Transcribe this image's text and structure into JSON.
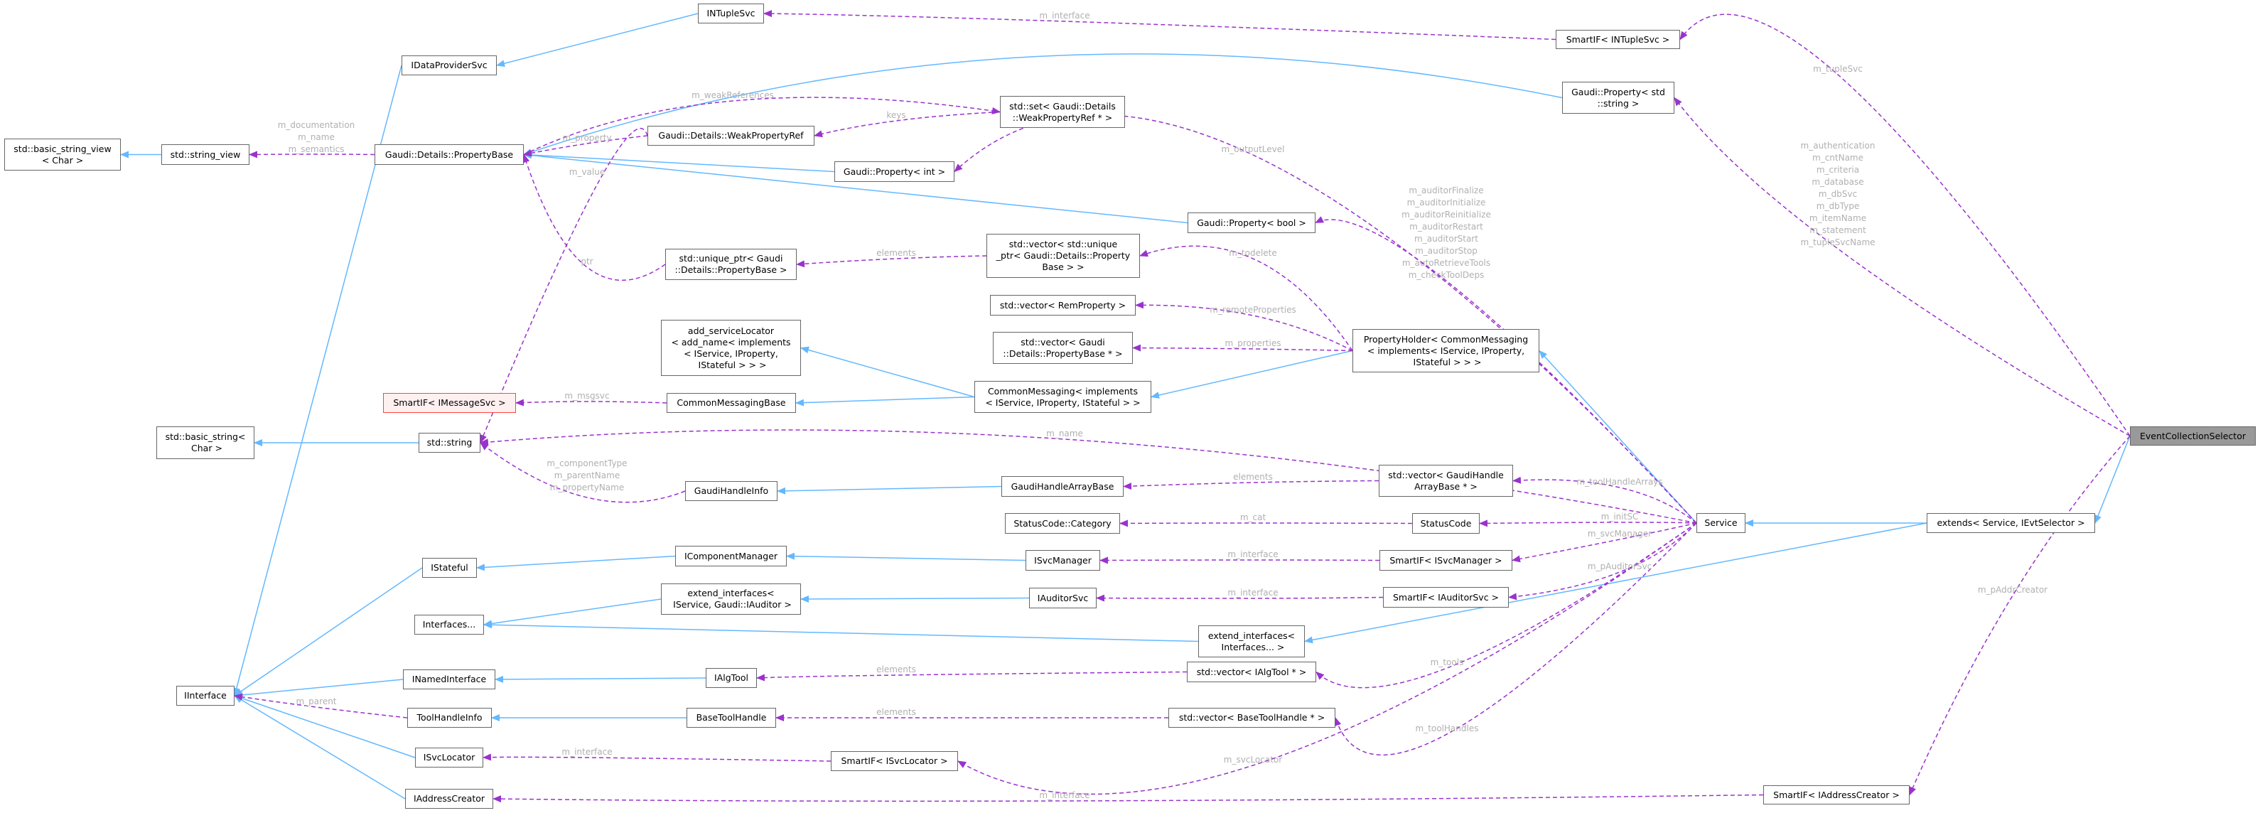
{
  "colors": {
    "inheritance": "#63b8ff",
    "usage": "#9a32cd",
    "edge_label": "#b0b0b0",
    "current_node_fill": "#999999",
    "warning_node_border": "#ff4444",
    "warning_node_fill": "#fff0f0"
  },
  "current_node": 22,
  "warning_nodes": [
    18
  ],
  "nodes": [
    {
      "lines": [
        "INTupleSvc"
      ]
    },
    {
      "lines": [
        "SmartIF< INTupleSvc >"
      ]
    },
    {
      "lines": [
        "IDataProviderSvc"
      ]
    },
    {
      "lines": [
        "Gaudi::Property< std",
        "::string >"
      ]
    },
    {
      "lines": [
        "std::basic_string_view",
        "< Char >"
      ]
    },
    {
      "lines": [
        "std::string_view"
      ]
    },
    {
      "lines": [
        "Gaudi::Details::PropertyBase"
      ]
    },
    {
      "lines": [
        "Gaudi::Details::WeakPropertyRef"
      ]
    },
    {
      "lines": [
        "std::set< Gaudi::Details",
        "::WeakPropertyRef * >"
      ]
    },
    {
      "lines": [
        "Gaudi::Property< int >"
      ]
    },
    {
      "lines": [
        "Gaudi::Property< bool >"
      ]
    },
    {
      "lines": [
        "std::unique_ptr< Gaudi",
        "::Details::PropertyBase >"
      ]
    },
    {
      "lines": [
        "std::vector< std::unique",
        "_ptr< Gaudi::Details::Property",
        "Base > >"
      ]
    },
    {
      "lines": [
        "std::vector< RemProperty >"
      ]
    },
    {
      "lines": [
        "std::vector< Gaudi",
        "::Details::PropertyBase * >"
      ]
    },
    {
      "lines": [
        "PropertyHolder< CommonMessaging",
        "< implements< IService, IProperty,",
        " IStateful > > >"
      ]
    },
    {
      "lines": [
        "add_serviceLocator",
        "< add_name< implements",
        "< IService, IProperty,",
        " IStateful > > >"
      ]
    },
    {
      "lines": [
        "CommonMessagingBase"
      ]
    },
    {
      "lines": [
        "SmartIF< IMessageSvc >"
      ]
    },
    {
      "lines": [
        "CommonMessaging< implements",
        "< IService, IProperty, IStateful > >"
      ]
    },
    {
      "lines": [
        "std::basic_string<",
        " Char >"
      ]
    },
    {
      "lines": [
        "std::string"
      ]
    },
    {
      "lines": [
        "EventCollectionSelector"
      ]
    },
    {
      "lines": [
        "GaudiHandleArrayBase"
      ]
    },
    {
      "lines": [
        "std::vector< GaudiHandle",
        "ArrayBase * >"
      ]
    },
    {
      "lines": [
        "GaudiHandleInfo"
      ]
    },
    {
      "lines": [
        "StatusCode::Category"
      ]
    },
    {
      "lines": [
        "StatusCode"
      ]
    },
    {
      "lines": [
        "Service"
      ]
    },
    {
      "lines": [
        "extends< Service, IEvtSelector >"
      ]
    },
    {
      "lines": [
        "IComponentManager"
      ]
    },
    {
      "lines": [
        "ISvcManager"
      ]
    },
    {
      "lines": [
        "SmartIF< ISvcManager >"
      ]
    },
    {
      "lines": [
        "IStateful"
      ]
    },
    {
      "lines": [
        "extend_interfaces<",
        " IService, Gaudi::IAuditor >"
      ]
    },
    {
      "lines": [
        "IAuditorSvc"
      ]
    },
    {
      "lines": [
        "SmartIF< IAuditorSvc >"
      ]
    },
    {
      "lines": [
        "Interfaces..."
      ]
    },
    {
      "lines": [
        "extend_interfaces<",
        " Interfaces... >"
      ]
    },
    {
      "lines": [
        "std::vector< IAlgTool * >"
      ]
    },
    {
      "lines": [
        "IAlgTool"
      ]
    },
    {
      "lines": [
        "INamedInterface"
      ]
    },
    {
      "lines": [
        "IInterface"
      ]
    },
    {
      "lines": [
        "ToolHandleInfo"
      ]
    },
    {
      "lines": [
        "BaseToolHandle"
      ]
    },
    {
      "lines": [
        "std::vector< BaseToolHandle * >"
      ]
    },
    {
      "lines": [
        "ISvcLocator"
      ]
    },
    {
      "lines": [
        "SmartIF< ISvcLocator >"
      ]
    },
    {
      "lines": [
        "IAddressCreator"
      ]
    },
    {
      "lines": [
        "SmartIF< IAddressCreator >"
      ]
    }
  ],
  "inheritance": [
    [
      0,
      2
    ],
    [
      2,
      42
    ],
    [
      3,
      6
    ],
    [
      9,
      6
    ],
    [
      10,
      6
    ],
    [
      5,
      4
    ],
    [
      21,
      20
    ],
    [
      19,
      16
    ],
    [
      19,
      17
    ],
    [
      15,
      19
    ],
    [
      28,
      15
    ],
    [
      23,
      25
    ],
    [
      33,
      42
    ],
    [
      30,
      33
    ],
    [
      31,
      30
    ],
    [
      34,
      37
    ],
    [
      35,
      34
    ],
    [
      38,
      37
    ],
    [
      29,
      38
    ],
    [
      41,
      42
    ],
    [
      40,
      41
    ],
    [
      44,
      43
    ],
    [
      46,
      42
    ],
    [
      48,
      42
    ],
    [
      29,
      28
    ],
    [
      22,
      29
    ]
  ],
  "usage": [
    {
      "from": 1,
      "to": 0,
      "label": [
        "m_interface"
      ]
    },
    {
      "from": 22,
      "to": 1,
      "label": [
        "m_tupleSvc"
      ]
    },
    {
      "from": 22,
      "to": 3,
      "label": [
        "m_authentication",
        "m_cntName",
        "m_criteria",
        "m_database",
        "m_dbSvc",
        "m_dbType",
        "m_itemName",
        "m_statement",
        "m_tupleSvcName"
      ]
    },
    {
      "from": 22,
      "to": 49,
      "label": [
        "m_pAddrCreator"
      ]
    },
    {
      "from": 49,
      "to": 48,
      "label": [
        "m_interface"
      ]
    },
    {
      "from": 6,
      "to": 5,
      "label": [
        "m_documentation",
        "m_name",
        "m_semantics"
      ]
    },
    {
      "from": 6,
      "to": 8,
      "label": [
        "m_weakReferences"
      ]
    },
    {
      "from": 8,
      "to": 7,
      "label": [
        "keys"
      ]
    },
    {
      "from": 7,
      "to": 6,
      "label": [
        "m_property"
      ]
    },
    {
      "from": 7,
      "to": 21,
      "label": [
        "m_value"
      ]
    },
    {
      "from": 11,
      "to": 6,
      "label": [
        "ptr"
      ]
    },
    {
      "from": 12,
      "to": 11,
      "label": [
        "elements"
      ]
    },
    {
      "from": 15,
      "to": 12,
      "label": [
        "m_todelete"
      ]
    },
    {
      "from": 15,
      "to": 13,
      "label": [
        "m_remoteProperties"
      ]
    },
    {
      "from": 15,
      "to": 14,
      "label": [
        "m_properties"
      ]
    },
    {
      "from": 17,
      "to": 18,
      "label": [
        "m_msgsvc"
      ]
    },
    {
      "from": 28,
      "to": 21,
      "label": [
        "m_name"
      ]
    },
    {
      "from": 28,
      "to": 9,
      "label": [
        "m_outputLevel"
      ]
    },
    {
      "from": 28,
      "to": 10,
      "label": [
        "m_auditorFinalize",
        "m_auditorInitialize",
        "m_auditorReinitialize",
        "m_auditorRestart",
        "m_auditorStart",
        "m_auditorStop",
        "m_autoRetrieveTools",
        "m_checkToolDeps"
      ]
    },
    {
      "from": 28,
      "to": 24,
      "label": [
        "m_toolHandleArrays"
      ]
    },
    {
      "from": 24,
      "to": 23,
      "label": [
        "elements"
      ]
    },
    {
      "from": 25,
      "to": 21,
      "label": [
        "m_componentType",
        "m_parentName",
        "m_propertyName"
      ]
    },
    {
      "from": 27,
      "to": 26,
      "label": [
        "m_cat"
      ]
    },
    {
      "from": 28,
      "to": 27,
      "label": [
        "m_initSC"
      ]
    },
    {
      "from": 32,
      "to": 31,
      "label": [
        "m_interface"
      ]
    },
    {
      "from": 28,
      "to": 32,
      "label": [
        "m_svcManager"
      ]
    },
    {
      "from": 36,
      "to": 35,
      "label": [
        "m_interface"
      ]
    },
    {
      "from": 28,
      "to": 36,
      "label": [
        "m_pAuditorSvc"
      ]
    },
    {
      "from": 39,
      "to": 40,
      "label": [
        "elements"
      ]
    },
    {
      "from": 28,
      "to": 39,
      "label": [
        "m_tools"
      ]
    },
    {
      "from": 45,
      "to": 44,
      "label": [
        "elements"
      ]
    },
    {
      "from": 28,
      "to": 45,
      "label": [
        "m_toolHandles"
      ]
    },
    {
      "from": 47,
      "to": 46,
      "label": [
        "m_interface"
      ]
    },
    {
      "from": 28,
      "to": 47,
      "label": [
        "m_svcLocator"
      ]
    },
    {
      "from": 43,
      "to": 42,
      "label": [
        "m_parent"
      ]
    }
  ]
}
